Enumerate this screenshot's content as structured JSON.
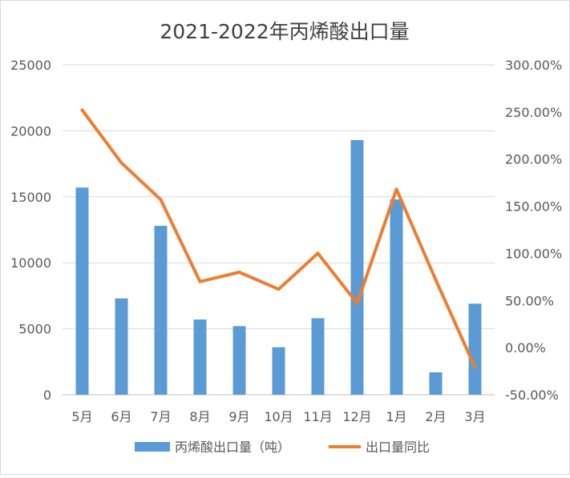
{
  "chart_data": {
    "type": "bar",
    "title": "2021-2022年丙烯酸出口量",
    "categories": [
      "5月",
      "6月",
      "7月",
      "8月",
      "9月",
      "10月",
      "11月",
      "12月",
      "1月",
      "2月",
      "3月"
    ],
    "series": [
      {
        "name": "丙烯酸出口量（吨）",
        "type": "bar",
        "axis": "left",
        "color": "#5b9bd5",
        "values": [
          15700,
          7300,
          12800,
          5700,
          5200,
          3600,
          5800,
          19300,
          14800,
          1700,
          6900
        ]
      },
      {
        "name": "出口量同比",
        "type": "line",
        "axis": "right",
        "color": "#ed7d31",
        "values": [
          2.52,
          1.96,
          1.57,
          0.7,
          0.8,
          0.62,
          1.0,
          0.47,
          1.68,
          0.72,
          -0.21
        ]
      }
    ],
    "y_left": {
      "min": 0,
      "max": 25000,
      "ticks": [
        0,
        5000,
        10000,
        15000,
        20000,
        25000
      ],
      "tick_labels": [
        "0",
        "5000",
        "10000",
        "15000",
        "20000",
        "25000"
      ]
    },
    "y_right": {
      "min": -0.5,
      "max": 3.0,
      "ticks": [
        -0.5,
        0,
        0.5,
        1.0,
        1.5,
        2.0,
        2.5,
        3.0
      ],
      "tick_labels": [
        "-50.00%",
        "0.00%",
        "50.00%",
        "100.00%",
        "150.00%",
        "200.00%",
        "250.00%",
        "300.00%"
      ]
    },
    "grid": true,
    "legend": "bottom"
  }
}
